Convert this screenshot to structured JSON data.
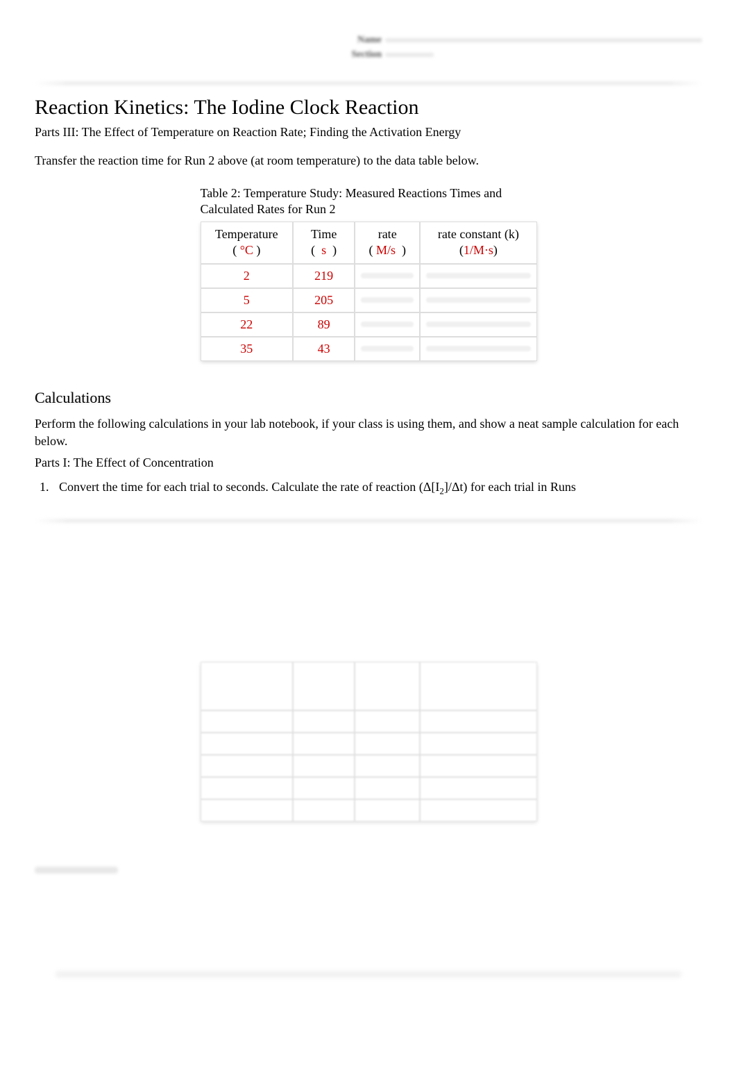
{
  "header": {
    "field1_label": "Name",
    "field2_label": "Section"
  },
  "title": "Reaction Kinetics: The Iodine Clock Reaction",
  "subtitle": "Parts III: The Effect of Temperature on Reaction Rate; Finding the Activation Energy",
  "instruction": "Transfer the reaction time for Run 2 above (at room temperature) to the data table below.",
  "table": {
    "caption": "Table 2: Temperature Study: Measured Reactions Times and Calculated Rates for Run 2",
    "columns": {
      "temp": {
        "label": "Temperature",
        "unit": "°C"
      },
      "time": {
        "label": "Time",
        "unit": "s"
      },
      "rate": {
        "label": "rate",
        "unit": "M/s"
      },
      "k": {
        "label": "rate constant (k)",
        "unit": "1/M·s"
      }
    },
    "rows": [
      {
        "temp": "2",
        "time": "219",
        "rate": "",
        "k": ""
      },
      {
        "temp": "5",
        "time": "205",
        "rate": "",
        "k": ""
      },
      {
        "temp": "22",
        "time": "89",
        "rate": "",
        "k": ""
      },
      {
        "temp": "35",
        "time": "43",
        "rate": "",
        "k": ""
      }
    ]
  },
  "calculations": {
    "heading": "Calculations",
    "intro": "Perform the following calculations in your lab notebook, if your class is using them, and show a neat sample calculation for each below.",
    "part_label": "Parts I: The Effect of Concentration",
    "item1_prefix": "Convert the time for each trial to seconds. Calculate the rate of reaction (Δ[I",
    "item1_sub": "2",
    "item1_suffix": "]/Δt) for each trial in Runs"
  },
  "colors": {
    "unit_color": "#cc0000",
    "value_color": "#cc0000",
    "text_color": "#000000",
    "bg": "#ffffff"
  }
}
